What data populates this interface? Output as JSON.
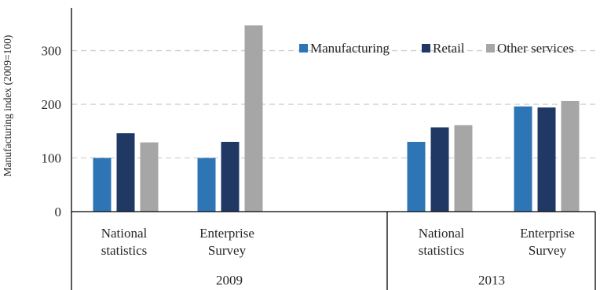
{
  "chart_data": {
    "type": "bar",
    "ylabel": "Manufacturing index (2009=100)",
    "ylim": [
      0,
      350
    ],
    "yticks": [
      0,
      100,
      200,
      300
    ],
    "grid": "horizontal-dashed",
    "legend_position": "top-right",
    "groups": [
      {
        "year": "2009",
        "categories": [
          "National\nstatistics",
          "Enterprise\nSurvey"
        ]
      },
      {
        "year": "2013",
        "categories": [
          "National\nstatistics",
          "Enterprise\nSurvey"
        ]
      }
    ],
    "series": [
      {
        "name": "Manufacturing",
        "color": "#2E75B6",
        "values": [
          100,
          100,
          130,
          196
        ]
      },
      {
        "name": "Retail",
        "color": "#1F3864",
        "values": [
          146,
          130,
          157,
          194
        ]
      },
      {
        "name": "Other services",
        "color": "#A6A6A6",
        "values": [
          129,
          347,
          161,
          206
        ]
      }
    ]
  }
}
